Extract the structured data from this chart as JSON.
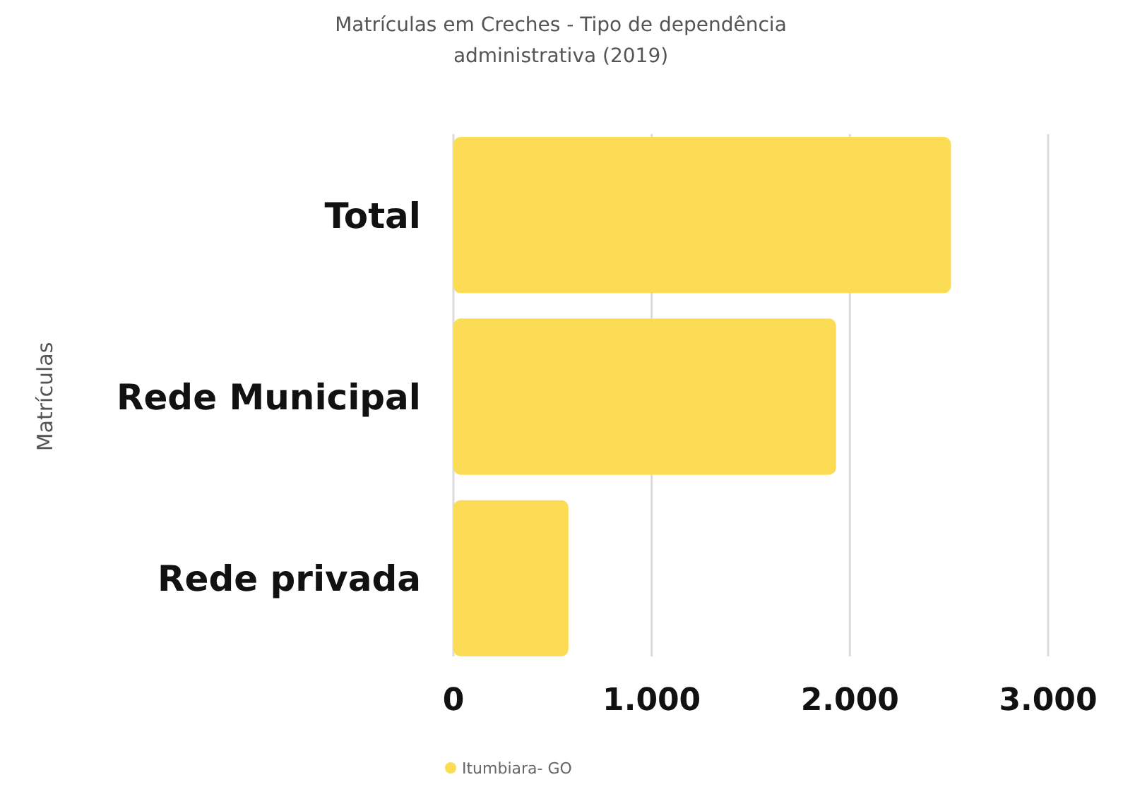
{
  "chart_data": {
    "type": "bar",
    "orientation": "horizontal",
    "title": "Matrículas em Creches - Tipo de dependência administrativa (2019)",
    "ylabel": "Matrículas",
    "categories": [
      "Total",
      "Rede Municipal",
      "Rede privada"
    ],
    "series": [
      {
        "name": "Itumbiara- GO",
        "color": "#fcdc55",
        "values": [
          2510,
          1930,
          580
        ]
      }
    ],
    "xlim": [
      0,
      3000
    ],
    "xticks": [
      {
        "value": 0,
        "label": "0"
      },
      {
        "value": 1000,
        "label": "1.000"
      },
      {
        "value": 2000,
        "label": "2.000"
      },
      {
        "value": 3000,
        "label": "3.000"
      }
    ],
    "grid": "x",
    "legend": "bottom"
  }
}
